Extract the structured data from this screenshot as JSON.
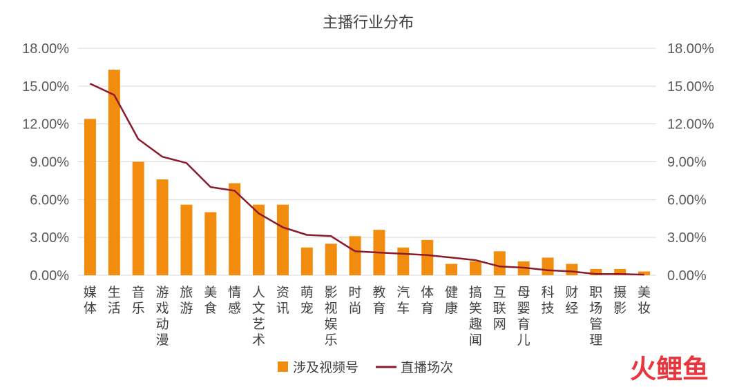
{
  "chart_data": {
    "type": "bar",
    "title": "主播行业分布",
    "categories": [
      "媒体",
      "生活",
      "音乐",
      "游戏动漫",
      "旅游",
      "美食",
      "情感",
      "人文艺术",
      "资讯",
      "萌宠",
      "影视娱乐",
      "时尚",
      "教育",
      "汽车",
      "体育",
      "健康",
      "搞笑趣闻",
      "互联网",
      "母婴育儿",
      "科技",
      "财经",
      "职场管理",
      "摄影",
      "美妆"
    ],
    "series": [
      {
        "name": "涉及视频号",
        "type": "bar",
        "color": "#F28C0F",
        "values": [
          12.4,
          16.3,
          9.0,
          7.6,
          5.6,
          5.0,
          7.3,
          5.6,
          5.6,
          2.2,
          2.5,
          3.1,
          3.6,
          2.2,
          2.8,
          0.9,
          1.1,
          1.9,
          1.1,
          1.4,
          0.9,
          0.5,
          0.5,
          0.3
        ]
      },
      {
        "name": "直播场次",
        "type": "line",
        "color": "#8B1A2B",
        "values": [
          15.2,
          14.3,
          10.8,
          9.4,
          8.9,
          7.0,
          6.7,
          4.9,
          3.8,
          3.2,
          3.1,
          1.9,
          1.8,
          1.7,
          1.6,
          1.4,
          1.2,
          0.7,
          0.6,
          0.4,
          0.3,
          0.1,
          0.1,
          0.05
        ]
      }
    ],
    "yticks": [
      "0.00%",
      "3.00%",
      "6.00%",
      "9.00%",
      "12.00%",
      "15.00%",
      "18.00%"
    ],
    "ylim": [
      0,
      18
    ],
    "y2lim": [
      0,
      18
    ],
    "legend_position": "bottom",
    "grid": true
  },
  "brand": {
    "logo_text": "火鲤鱼",
    "color": "#E8363C"
  }
}
